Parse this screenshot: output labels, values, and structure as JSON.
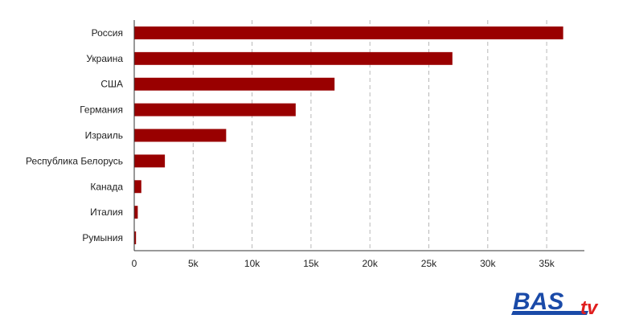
{
  "chart_data": {
    "type": "bar",
    "orientation": "horizontal",
    "categories": [
      "Россия",
      "Украина",
      "США",
      "Германия",
      "Израиль",
      "Республика Белорусь",
      "Канада",
      "Италия",
      "Румыния"
    ],
    "values": [
      36400,
      27000,
      17000,
      13700,
      7800,
      2600,
      600,
      300,
      150
    ],
    "xticks": [
      0,
      5000,
      10000,
      15000,
      20000,
      25000,
      30000,
      35000
    ],
    "xtick_labels": [
      "0",
      "5k",
      "10k",
      "15k",
      "20k",
      "25k",
      "30k",
      "35k"
    ],
    "xlim": [
      0,
      38200
    ],
    "grid": true,
    "bar_color": "#990000",
    "title": "",
    "xlabel": "",
    "ylabel": ""
  },
  "logo": {
    "text": "BAS",
    "suffix": "tv",
    "colors": {
      "primary": "#1a4aa8",
      "accent": "#e01e1e"
    }
  }
}
